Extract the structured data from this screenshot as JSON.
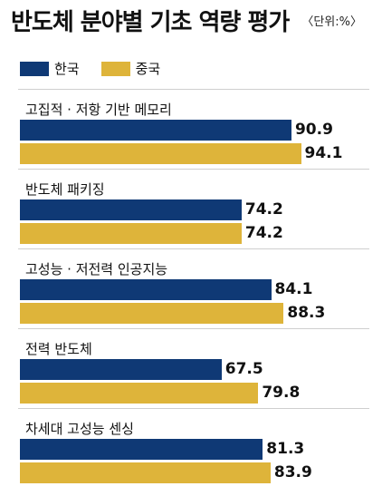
{
  "title": "반도체 분야별 기초 역량 평가",
  "unit": "〈단위:%〉",
  "colors": {
    "korea": "#0f3975",
    "china": "#deb43a"
  },
  "chart_data": {
    "type": "bar",
    "orientation": "horizontal",
    "title": "반도체 분야별 기초 역량 평가",
    "unit": "〈단위:%〉",
    "legend_placement": "top-left",
    "xlim": [
      0,
      100
    ],
    "grid": false,
    "categories": [
      "고집적 · 저항 기반 메모리",
      "반도체 패키징",
      "고성능 · 저전력 인공지능",
      "전력 반도체",
      "차세대 고성능 센싱"
    ],
    "series": [
      {
        "name": "한국",
        "color": "#0f3975",
        "values": [
          90.9,
          74.2,
          84.1,
          67.5,
          81.3
        ]
      },
      {
        "name": "중국",
        "color": "#deb43a",
        "values": [
          94.1,
          74.2,
          88.3,
          79.8,
          83.9
        ]
      }
    ]
  }
}
